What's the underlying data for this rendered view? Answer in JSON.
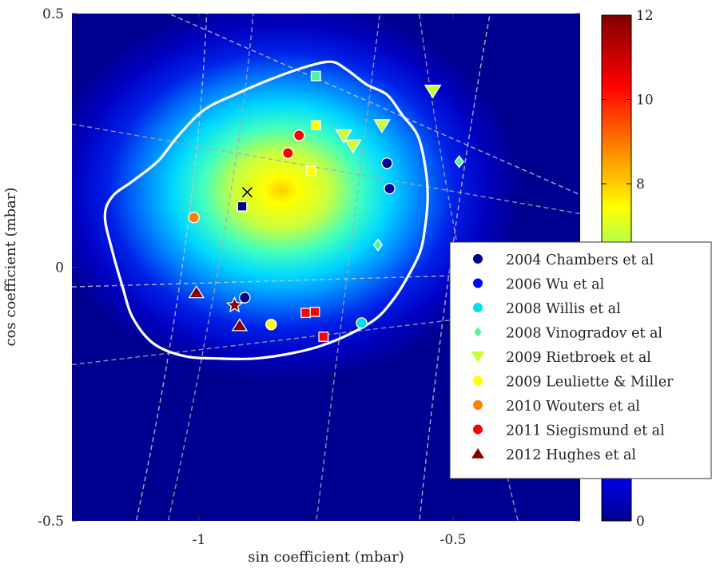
{
  "chart_data": {
    "type": "scatter",
    "title": "",
    "xlabel": "sin coefficient (mbar)",
    "ylabel": "cos coefficient (mbar)",
    "xlim": [
      -1.25,
      -0.25
    ],
    "ylim": [
      -0.5,
      0.5
    ],
    "x_ticks": [
      -1,
      -0.5
    ],
    "x_tick_labels": [
      "-1",
      "-0.5"
    ],
    "y_ticks": [
      -0.5,
      0,
      0.5
    ],
    "y_tick_labels": [
      "-0.5",
      "0",
      "0.5"
    ],
    "grid": false,
    "colorbar": {
      "range": [
        0,
        12
      ],
      "ticks": [
        0,
        2,
        4,
        6,
        8,
        10,
        12
      ],
      "tick_labels": [
        "0",
        "2",
        "4",
        "6",
        "8",
        "10",
        "12"
      ],
      "colors": [
        "#00008f",
        "#0000ff",
        "#00a0ff",
        "#00ffff",
        "#7fff7f",
        "#ffff00",
        "#ff8000",
        "#ff0000",
        "#800000"
      ]
    },
    "density": {
      "center": [
        -0.91,
        0.15
      ],
      "peak": 8.6,
      "contour_level": 0.5
    },
    "contour_outline": [
      [
        -1.08,
        0.21
      ],
      [
        -1.04,
        0.26
      ],
      [
        -0.99,
        0.31
      ],
      [
        -0.93,
        0.34
      ],
      [
        -0.86,
        0.37
      ],
      [
        -0.79,
        0.395
      ],
      [
        -0.74,
        0.405
      ],
      [
        -0.71,
        0.39
      ],
      [
        -0.67,
        0.36
      ],
      [
        -0.63,
        0.34
      ],
      [
        -0.6,
        0.3
      ],
      [
        -0.57,
        0.26
      ],
      [
        -0.555,
        0.2
      ],
      [
        -0.55,
        0.14
      ],
      [
        -0.555,
        0.08
      ],
      [
        -0.565,
        0.03
      ],
      [
        -0.59,
        -0.02
      ],
      [
        -0.615,
        -0.06
      ],
      [
        -0.65,
        -0.1
      ],
      [
        -0.7,
        -0.13
      ],
      [
        -0.76,
        -0.155
      ],
      [
        -0.82,
        -0.17
      ],
      [
        -0.89,
        -0.18
      ],
      [
        -0.96,
        -0.18
      ],
      [
        -1.03,
        -0.175
      ],
      [
        -1.09,
        -0.15
      ],
      [
        -1.13,
        -0.1
      ],
      [
        -1.15,
        -0.04
      ],
      [
        -1.17,
        0.03
      ],
      [
        -1.185,
        0.1
      ],
      [
        -1.17,
        0.14
      ],
      [
        -1.13,
        0.17
      ]
    ],
    "reference_marker": {
      "x": -0.905,
      "y": 0.148,
      "symbol": "x"
    },
    "series": [
      {
        "name": "2004 Chambers et al",
        "marker": "circle",
        "color": "#00008f",
        "points": [
          [
            -0.63,
            0.205
          ],
          [
            -0.625,
            0.155
          ],
          [
            -0.91,
            -0.06
          ]
        ],
        "extras": [
          {
            "marker": "square",
            "points": [
              [
                -0.915,
                0.12
              ]
            ]
          }
        ]
      },
      {
        "name": "2006 Wu et al",
        "marker": "circle",
        "color": "#0000ff",
        "points": []
      },
      {
        "name": "2008 Willis et al",
        "marker": "circle",
        "color": "#00e0f0",
        "points": [
          [
            -0.68,
            -0.11
          ]
        ]
      },
      {
        "name": "2008 Vinogradov et al",
        "marker": "diamond",
        "color": "#55f0a0",
        "points": [
          [
            -0.488,
            0.208
          ],
          [
            -0.648,
            0.044
          ]
        ],
        "extras": [
          {
            "marker": "square",
            "points": [
              [
                -0.77,
                0.377
              ]
            ]
          }
        ]
      },
      {
        "name": "2009 Rietbroek et al",
        "marker": "triangle-down",
        "color": "#ccff33",
        "points": [
          [
            -0.54,
            0.348
          ],
          [
            -0.64,
            0.28
          ],
          [
            -0.715,
            0.26
          ],
          [
            -0.697,
            0.24
          ]
        ]
      },
      {
        "name": "2009 Leuliette & Miller",
        "marker": "circle",
        "color": "#ffff00",
        "points": [
          [
            -0.858,
            -0.113
          ]
        ],
        "extras": [
          {
            "marker": "square",
            "points": [
              [
                -0.77,
                0.28
              ],
              [
                -0.78,
                0.19
              ]
            ]
          }
        ]
      },
      {
        "name": "2010 Wouters et al",
        "marker": "circle",
        "color": "#ff8000",
        "points": [
          [
            -1.01,
            0.098
          ]
        ]
      },
      {
        "name": "2011 Siegismund et al",
        "marker": "circle",
        "color": "#ff0000",
        "points": [
          [
            -0.803,
            0.26
          ],
          [
            -0.825,
            0.225
          ]
        ],
        "extras": [
          {
            "marker": "square",
            "points": [
              [
                -0.79,
                -0.09
              ],
              [
                -0.772,
                -0.088
              ],
              [
                -0.755,
                -0.137
              ]
            ]
          }
        ]
      },
      {
        "name": "2012 Hughes et al",
        "marker": "triangle-up",
        "color": "#800000",
        "points": [
          [
            -1.005,
            -0.05
          ],
          [
            -0.92,
            -0.115
          ]
        ],
        "extras": [
          {
            "marker": "star",
            "points": [
              [
                -0.93,
                -0.075
              ]
            ]
          }
        ]
      }
    ],
    "legend_position": "right"
  }
}
